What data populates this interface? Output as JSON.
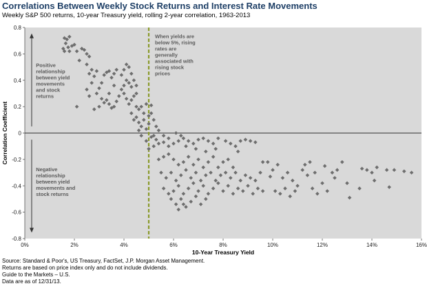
{
  "header": {
    "title": "Correlations Between Weekly Stock Returns and Interest Rate Movements",
    "subtitle": "Weekly S&P 500 returns, 10-year Treasury yield, rolling 2-year correlation, 1963-2013"
  },
  "footnotes": [
    "Source: Standard & Poor's, US Treasury, FactSet, J.P. Morgan Asset Management.",
    "Returns are based on price index only and do not include dividends.",
    "Guide to the Markets – U.S.",
    "Data are as of 12/31/13."
  ],
  "colors": {
    "plot_background": "#d9d9d9",
    "marker": "#6e6e6e",
    "threshold_line": "#8a9a2a",
    "title": "#1e3f66"
  },
  "chart_data": {
    "type": "scatter",
    "title": "Correlations Between Weekly Stock Returns and Interest Rate Movements",
    "subtitle": "Weekly S&P 500 returns, 10-year Treasury yield, rolling 2-year correlation, 1963-2013",
    "xlabel": "10-Year Treasury Yield",
    "ylabel": "Correlation Coefficient",
    "xlim": [
      0,
      16
    ],
    "ylim": [
      -0.8,
      0.8
    ],
    "xticks": [
      0,
      2,
      4,
      6,
      8,
      10,
      12,
      14,
      16
    ],
    "xtick_labels": [
      "0%",
      "2%",
      "4%",
      "6%",
      "8%",
      "10%",
      "12%",
      "14%",
      "16%"
    ],
    "yticks": [
      0.8,
      0.6,
      0.4,
      0.2,
      0,
      -0.2,
      -0.4,
      -0.6,
      -0.8
    ],
    "ytick_labels": [
      "0.8",
      "0.6",
      "0.4",
      "0.2",
      "0",
      "-0.2",
      "-0.4",
      "-0.6",
      "-0.8"
    ],
    "grid": false,
    "marker": "diamond",
    "threshold_x": 5,
    "annotations": [
      {
        "lines": [
          "Positive",
          "relationship",
          "between yield",
          "movements",
          "and stock",
          "returns"
        ],
        "x": 0.45,
        "y": 0.5
      },
      {
        "lines": [
          "Negative",
          "relationship",
          "between yield",
          "movements and",
          "stock returns"
        ],
        "x": 0.45,
        "y": -0.29
      },
      {
        "lines": [
          "When yields are",
          "below 5%, rising",
          "rates are",
          "generally",
          "associated with",
          "rising stock",
          "prices"
        ],
        "x": 5.25,
        "y": 0.72
      }
    ],
    "points": [
      [
        1.6,
        0.72
      ],
      [
        1.7,
        0.71
      ],
      [
        1.8,
        0.73
      ],
      [
        1.65,
        0.68
      ],
      [
        1.75,
        0.65
      ],
      [
        1.55,
        0.64
      ],
      [
        1.9,
        0.66
      ],
      [
        2.0,
        0.67
      ],
      [
        1.6,
        0.62
      ],
      [
        1.8,
        0.62
      ],
      [
        2.1,
        0.62
      ],
      [
        2.3,
        0.64
      ],
      [
        2.4,
        0.63
      ],
      [
        2.5,
        0.6
      ],
      [
        2.6,
        0.58
      ],
      [
        2.2,
        0.55
      ],
      [
        2.5,
        0.52
      ],
      [
        2.6,
        0.45
      ],
      [
        2.7,
        0.48
      ],
      [
        2.8,
        0.43
      ],
      [
        2.9,
        0.47
      ],
      [
        2.7,
        0.38
      ],
      [
        2.5,
        0.33
      ],
      [
        2.6,
        0.28
      ],
      [
        2.9,
        0.3
      ],
      [
        3.0,
        0.34
      ],
      [
        3.1,
        0.38
      ],
      [
        3.2,
        0.44
      ],
      [
        3.3,
        0.46
      ],
      [
        3.4,
        0.47
      ],
      [
        3.5,
        0.42
      ],
      [
        3.6,
        0.45
      ],
      [
        3.7,
        0.48
      ],
      [
        3.1,
        0.26
      ],
      [
        3.2,
        0.23
      ],
      [
        3.3,
        0.25
      ],
      [
        3.0,
        0.2
      ],
      [
        2.8,
        0.18
      ],
      [
        3.4,
        0.3
      ],
      [
        3.6,
        0.36
      ],
      [
        3.4,
        0.22
      ],
      [
        3.5,
        0.19
      ],
      [
        3.6,
        0.2
      ],
      [
        3.7,
        0.24
      ],
      [
        3.8,
        0.28
      ],
      [
        3.9,
        0.33
      ],
      [
        4.0,
        0.36
      ],
      [
        4.1,
        0.4
      ],
      [
        4.2,
        0.38
      ],
      [
        4.3,
        0.35
      ],
      [
        4.0,
        0.3
      ],
      [
        4.1,
        0.26
      ],
      [
        4.2,
        0.22
      ],
      [
        4.3,
        0.25
      ],
      [
        4.4,
        0.28
      ],
      [
        4.5,
        0.3
      ],
      [
        3.9,
        0.44
      ],
      [
        4.0,
        0.48
      ],
      [
        4.1,
        0.52
      ],
      [
        4.2,
        0.5
      ],
      [
        4.3,
        0.45
      ],
      [
        4.4,
        0.4
      ],
      [
        4.5,
        0.36
      ],
      [
        2.1,
        0.2
      ],
      [
        4.3,
        0.15
      ],
      [
        4.4,
        0.1
      ],
      [
        4.5,
        0.12
      ],
      [
        4.6,
        0.08
      ],
      [
        4.7,
        0.05
      ],
      [
        4.8,
        0.1
      ],
      [
        4.6,
        0.18
      ],
      [
        4.7,
        0.2
      ],
      [
        4.5,
        0.2
      ],
      [
        4.8,
        0.15
      ],
      [
        4.9,
        0.03
      ],
      [
        4.9,
        0.22
      ],
      [
        5.1,
        0.21
      ],
      [
        5.1,
        0.15
      ],
      [
        5.2,
        0.1
      ],
      [
        5.0,
        0.07
      ],
      [
        5.3,
        0.05
      ],
      [
        5.4,
        0.02
      ],
      [
        5.2,
        -0.02
      ],
      [
        5.3,
        -0.05
      ],
      [
        5.6,
        -0.02
      ],
      [
        5.8,
        -0.04
      ],
      [
        6.1,
        0.0
      ],
      [
        6.3,
        -0.02
      ],
      [
        5.0,
        -0.12
      ],
      [
        5.2,
        -0.1
      ],
      [
        5.4,
        -0.08
      ],
      [
        5.6,
        -0.07
      ],
      [
        5.8,
        -0.1
      ],
      [
        6.0,
        -0.08
      ],
      [
        6.2,
        -0.06
      ],
      [
        6.4,
        -0.04
      ],
      [
        6.6,
        -0.06
      ],
      [
        6.8,
        -0.08
      ],
      [
        7.0,
        -0.05
      ],
      [
        7.2,
        -0.04
      ],
      [
        7.4,
        -0.06
      ],
      [
        7.6,
        -0.08
      ],
      [
        7.8,
        -0.04
      ],
      [
        6.5,
        -0.1
      ],
      [
        6.9,
        -0.12
      ],
      [
        7.3,
        -0.14
      ],
      [
        7.7,
        -0.12
      ],
      [
        8.1,
        -0.06
      ],
      [
        8.3,
        -0.08
      ],
      [
        8.5,
        -0.1
      ],
      [
        8.7,
        -0.06
      ],
      [
        8.9,
        -0.05
      ],
      [
        9.1,
        -0.06
      ],
      [
        9.3,
        -0.07
      ],
      [
        8.6,
        -0.14
      ],
      [
        5.4,
        -0.2
      ],
      [
        5.6,
        -0.18
      ],
      [
        5.8,
        -0.16
      ],
      [
        6.0,
        -0.2
      ],
      [
        6.2,
        -0.24
      ],
      [
        6.4,
        -0.22
      ],
      [
        6.6,
        -0.18
      ],
      [
        6.8,
        -0.24
      ],
      [
        7.0,
        -0.2
      ],
      [
        7.2,
        -0.26
      ],
      [
        7.4,
        -0.22
      ],
      [
        7.6,
        -0.18
      ],
      [
        7.8,
        -0.26
      ],
      [
        8.0,
        -0.22
      ],
      [
        8.2,
        -0.2
      ],
      [
        8.4,
        -0.26
      ],
      [
        5.5,
        -0.3
      ],
      [
        5.7,
        -0.34
      ],
      [
        5.9,
        -0.3
      ],
      [
        6.1,
        -0.36
      ],
      [
        6.3,
        -0.32
      ],
      [
        6.5,
        -0.28
      ],
      [
        6.7,
        -0.34
      ],
      [
        6.9,
        -0.3
      ],
      [
        7.1,
        -0.36
      ],
      [
        7.3,
        -0.32
      ],
      [
        7.5,
        -0.3
      ],
      [
        7.7,
        -0.36
      ],
      [
        7.9,
        -0.32
      ],
      [
        8.1,
        -0.3
      ],
      [
        8.3,
        -0.34
      ],
      [
        8.5,
        -0.3
      ],
      [
        8.7,
        -0.36
      ],
      [
        8.9,
        -0.32
      ],
      [
        9.1,
        -0.34
      ],
      [
        9.3,
        -0.36
      ],
      [
        9.5,
        -0.3
      ],
      [
        5.6,
        -0.42
      ],
      [
        5.8,
        -0.46
      ],
      [
        6.0,
        -0.44
      ],
      [
        6.2,
        -0.4
      ],
      [
        6.4,
        -0.46
      ],
      [
        6.6,
        -0.42
      ],
      [
        6.8,
        -0.38
      ],
      [
        7.0,
        -0.44
      ],
      [
        7.2,
        -0.4
      ],
      [
        7.4,
        -0.46
      ],
      [
        7.6,
        -0.42
      ],
      [
        7.8,
        -0.38
      ],
      [
        8.0,
        -0.44
      ],
      [
        8.2,
        -0.4
      ],
      [
        8.4,
        -0.46
      ],
      [
        8.6,
        -0.42
      ],
      [
        8.8,
        -0.44
      ],
      [
        9.0,
        -0.4
      ],
      [
        9.2,
        -0.46
      ],
      [
        9.4,
        -0.42
      ],
      [
        9.6,
        -0.44
      ],
      [
        5.9,
        -0.5
      ],
      [
        6.1,
        -0.54
      ],
      [
        6.3,
        -0.5
      ],
      [
        6.5,
        -0.56
      ],
      [
        6.7,
        -0.52
      ],
      [
        6.9,
        -0.48
      ],
      [
        7.1,
        -0.54
      ],
      [
        6.2,
        -0.58
      ],
      [
        6.4,
        -0.54
      ],
      [
        7.3,
        -0.5
      ],
      [
        9.8,
        -0.22
      ],
      [
        10.0,
        -0.28
      ],
      [
        10.2,
        -0.24
      ],
      [
        10.4,
        -0.34
      ],
      [
        10.6,
        -0.3
      ],
      [
        10.8,
        -0.36
      ],
      [
        11.0,
        -0.4
      ],
      [
        11.2,
        -0.28
      ],
      [
        11.4,
        -0.32
      ],
      [
        11.6,
        -0.42
      ],
      [
        11.8,
        -0.46
      ],
      [
        12.0,
        -0.38
      ],
      [
        12.2,
        -0.44
      ],
      [
        12.4,
        -0.3
      ],
      [
        12.6,
        -0.28
      ],
      [
        10.1,
        -0.44
      ],
      [
        10.3,
        -0.46
      ],
      [
        10.5,
        -0.42
      ],
      [
        10.7,
        -0.48
      ],
      [
        10.9,
        -0.44
      ],
      [
        11.3,
        -0.24
      ],
      [
        11.5,
        -0.22
      ],
      [
        11.7,
        -0.3
      ],
      [
        12.1,
        -0.25
      ],
      [
        12.5,
        -0.34
      ],
      [
        12.8,
        -0.22
      ],
      [
        13.6,
        -0.27
      ],
      [
        13.8,
        -0.28
      ],
      [
        14.0,
        -0.3
      ],
      [
        14.2,
        -0.26
      ],
      [
        14.1,
        -0.36
      ],
      [
        14.6,
        -0.28
      ],
      [
        14.9,
        -0.28
      ],
      [
        15.3,
        -0.29
      ],
      [
        15.6,
        -0.3
      ],
      [
        13.5,
        -0.42
      ],
      [
        14.7,
        -0.41
      ],
      [
        13.0,
        -0.38
      ],
      [
        13.1,
        -0.49
      ],
      [
        9.6,
        -0.22
      ],
      [
        9.9,
        -0.33
      ],
      [
        4.9,
        -0.06
      ],
      [
        5.1,
        -0.03
      ],
      [
        4.7,
        -0.02
      ],
      [
        5.0,
        0.13
      ],
      [
        4.6,
        0.02
      ]
    ]
  }
}
